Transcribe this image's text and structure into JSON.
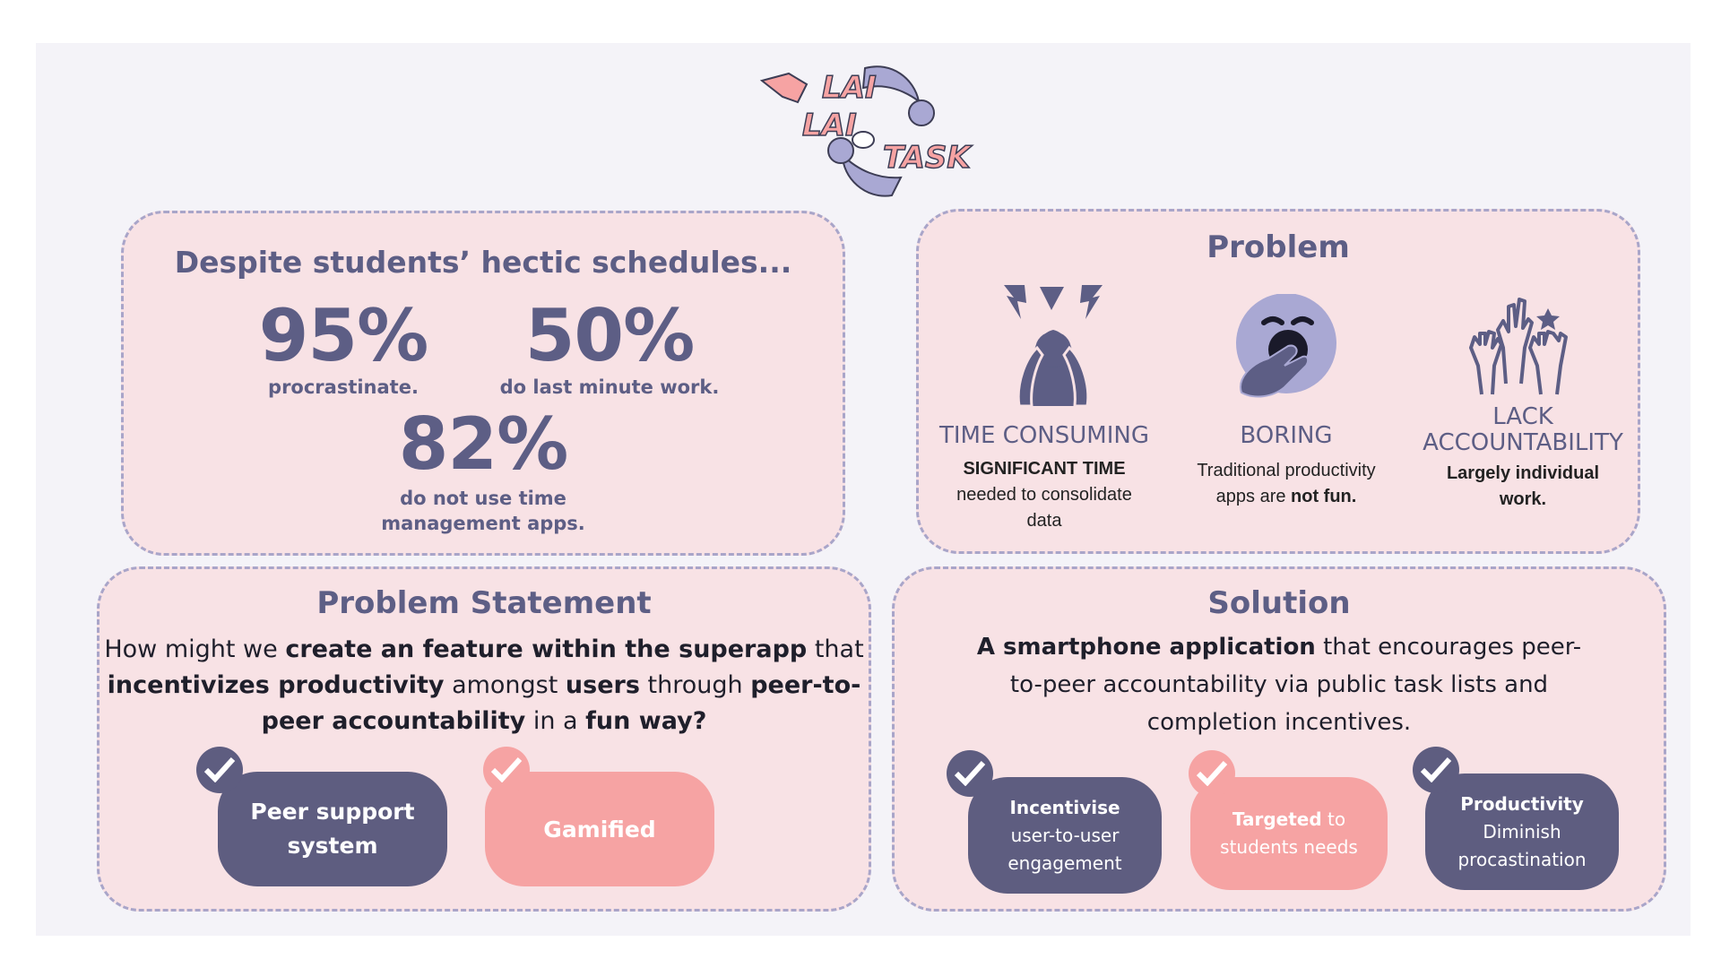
{
  "logo": {
    "line1": "LAI",
    "line2": "LAI",
    "line3": "TASK"
  },
  "stats": {
    "title": "Despite students’ hectic schedules...",
    "s1": {
      "value": "95%",
      "label": "procrastinate."
    },
    "s2": {
      "value": "50%",
      "label": "do last minute work."
    },
    "s3": {
      "value": "82%",
      "label1": "do not use time",
      "label2": "management apps."
    }
  },
  "problem": {
    "title": "Problem",
    "items": [
      {
        "icon": "stress-icon",
        "heading": "TIME CONSUMING",
        "bold": "SIGNIFICANT TIME",
        "line1": "needed to consolidate",
        "line2": "data"
      },
      {
        "icon": "yawn-icon",
        "heading": "BORING",
        "line1": "Traditional productivity",
        "pre": "apps are ",
        "bold": "not fun."
      },
      {
        "icon": "raised-hands-icon",
        "heading1": "LACK",
        "heading2": "ACCOUNTABILITY",
        "bold1": "Largely individual",
        "bold2": "work."
      }
    ]
  },
  "statement": {
    "title": "Problem Statement",
    "l1a": "How might we ",
    "l1b": "create an feature within the superapp",
    "l1c": " that",
    "l2a": "incentivizes productivity",
    "l2b": " amongst ",
    "l2c": "users",
    "l2d": " through ",
    "l2e": "peer-to-",
    "l3a": "peer accountability",
    "l3b": " in a ",
    "l3c": "fun way?",
    "pill1a": "Peer support",
    "pill1b": "system",
    "pill2": "Gamified"
  },
  "solution": {
    "title": "Solution",
    "l1a": "A smartphone application",
    "l1b": " that encourages peer-",
    "l2": "to-peer accountability via public task lists and",
    "l3": "completion incentives.",
    "pill1": {
      "bold": "Incentivise",
      "line1": "user-to-user",
      "line2": "engagement"
    },
    "pill2": {
      "bold": "Targeted",
      "rest": " to",
      "line2": "students needs"
    },
    "pill3": {
      "bold": "Productivity",
      "line1": "Diminish",
      "line2": "procastination"
    }
  },
  "colors": {
    "navy": "#5d5e85",
    "pink": "#f6a3a3",
    "panel": "#f8e2e5",
    "border": "#a9a5c9"
  }
}
